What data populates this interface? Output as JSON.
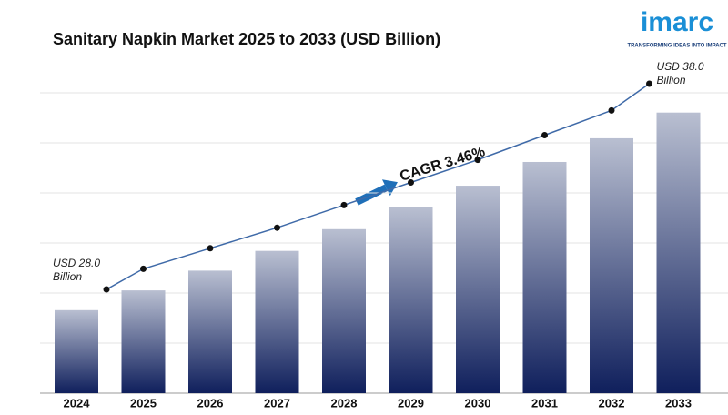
{
  "chart_data": {
    "type": "bar",
    "title": "Sanitary Napkin Market 2025 to 2033 (USD Billion)",
    "categories": [
      "2024",
      "2025",
      "2026",
      "2027",
      "2028",
      "2029",
      "2030",
      "2031",
      "2032",
      "2033"
    ],
    "values": [
      28.0,
      29.0,
      30.0,
      31.0,
      32.1,
      33.2,
      34.3,
      35.5,
      36.7,
      38.0
    ],
    "value_labels": [
      "USD 28.0 Billion",
      null,
      null,
      null,
      null,
      null,
      null,
      null,
      null,
      "USD 38.0 Billion"
    ],
    "color": "#0f1f5c",
    "line_color": "#3f6aa8",
    "ylim": [
      23.8,
      39.0
    ],
    "grid": true,
    "annotation": "CAGR 3.46%"
  },
  "logo": {
    "name": "imarc",
    "tagline": "TRANSFORMING IDEAS INTO IMPACT"
  }
}
